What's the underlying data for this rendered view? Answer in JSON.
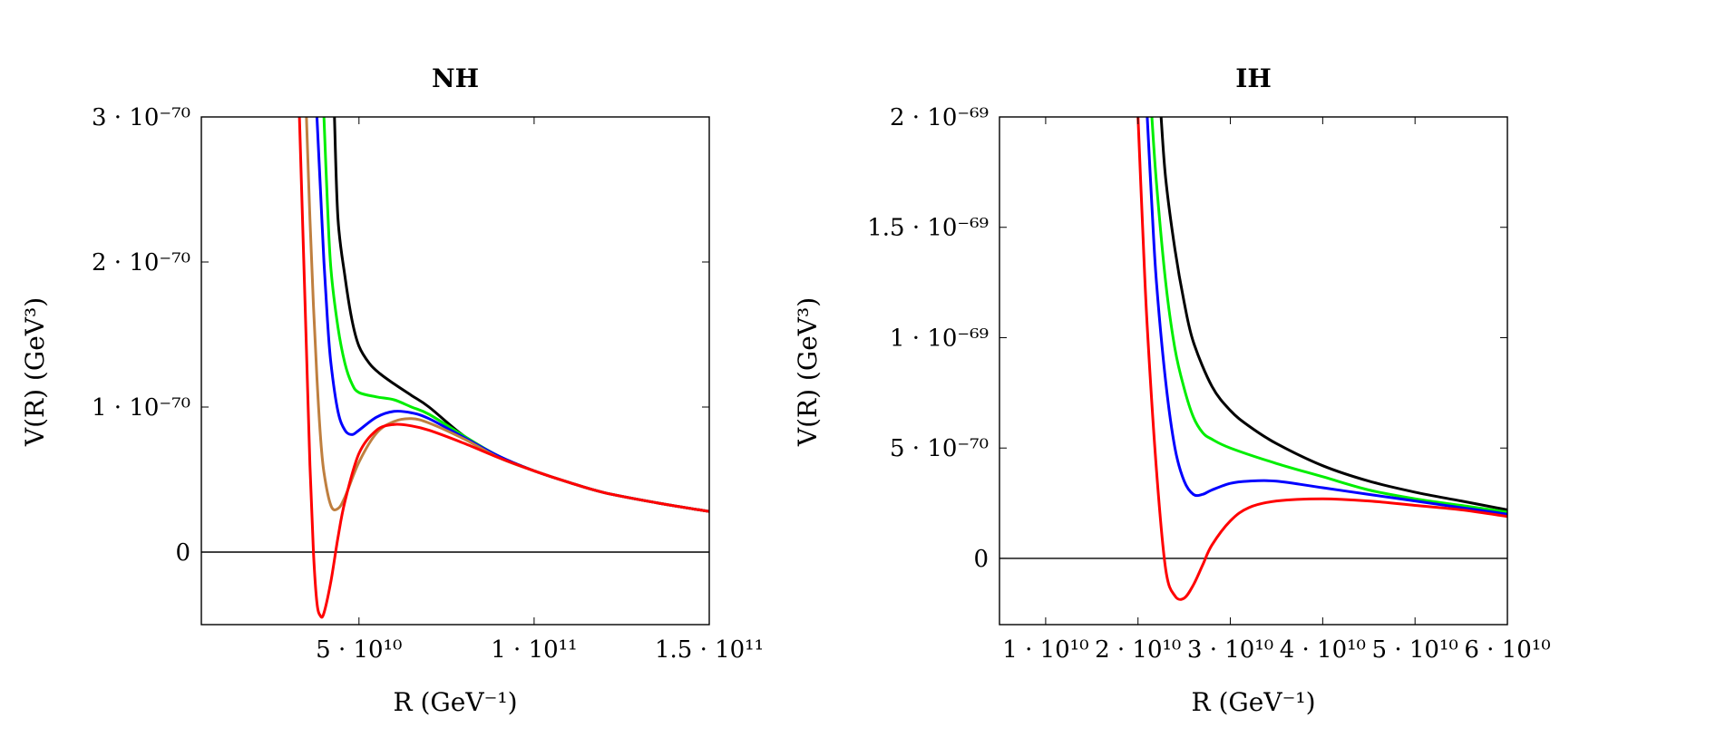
{
  "chart_data": [
    {
      "type": "line",
      "id": "nh",
      "title": "NH",
      "xlabel": "R (GeV⁻¹)",
      "ylabel": "V(R) (GeV³)",
      "xlim": [
        5000000000.0,
        150000000000.0
      ],
      "ylim": [
        -5e-71,
        3e-70
      ],
      "xticks": [
        {
          "value": 50000000000.0,
          "label": "5 · 10¹⁰"
        },
        {
          "value": 100000000000.0,
          "label": "1 · 10¹¹"
        },
        {
          "value": 150000000000.0,
          "label": "1.5 · 10¹¹"
        }
      ],
      "yticks": [
        {
          "value": 0,
          "label": "0"
        },
        {
          "value": 1e-70,
          "label": "1 · 10⁻⁷⁰"
        },
        {
          "value": 2e-70,
          "label": "2 · 10⁻⁷⁰"
        },
        {
          "value": 3e-70,
          "label": "3 · 10⁻⁷⁰"
        }
      ],
      "zero_line": true,
      "series": [
        {
          "name": "black",
          "color": "#000000",
          "x": [
            43000000000.0,
            44000000000.0,
            46000000000.0,
            48000000000.0,
            50000000000.0,
            53000000000.0,
            56000000000.0,
            60000000000.0,
            65000000000.0,
            70000000000.0,
            80000000000.0,
            90000000000.0,
            100000000000.0,
            110000000000.0,
            120000000000.0,
            135000000000.0,
            150000000000.0
          ],
          "y": [
            3e-70,
            2.3e-70,
            1.9e-70,
            1.6e-70,
            1.42e-70,
            1.3e-70,
            1.23e-70,
            1.16e-70,
            1.08e-70,
            1e-70,
            8e-71,
            6.6e-71,
            5.6e-71,
            4.8e-71,
            4.1e-71,
            3.4e-71,
            2.8e-71
          ]
        },
        {
          "name": "green",
          "color": "#00ee00",
          "x": [
            40000000000.0,
            41000000000.0,
            42000000000.0,
            44000000000.0,
            46000000000.0,
            48000000000.0,
            50000000000.0,
            55000000000.0,
            60000000000.0,
            65000000000.0,
            70000000000.0,
            80000000000.0,
            90000000000.0,
            100000000000.0,
            110000000000.0,
            120000000000.0,
            135000000000.0,
            150000000000.0
          ],
          "y": [
            3e-70,
            2.4e-70,
            1.95e-70,
            1.55e-70,
            1.3e-70,
            1.16e-70,
            1.1e-70,
            1.07e-70,
            1.05e-70,
            1e-70,
            9.5e-71,
            8e-71,
            6.6e-71,
            5.6e-71,
            4.8e-71,
            4.1e-71,
            3.4e-71,
            2.8e-71
          ]
        },
        {
          "name": "blue",
          "color": "#0000ff",
          "x": [
            38000000000.0,
            39000000000.0,
            40000000000.0,
            41000000000.0,
            42000000000.0,
            44000000000.0,
            46000000000.0,
            48000000000.0,
            50000000000.0,
            55000000000.0,
            60000000000.0,
            65000000000.0,
            70000000000.0,
            80000000000.0,
            90000000000.0,
            100000000000.0,
            110000000000.0,
            120000000000.0,
            135000000000.0,
            150000000000.0
          ],
          "y": [
            3e-70,
            2.5e-70,
            2e-70,
            1.6e-70,
            1.3e-70,
            9.7e-71,
            8.4e-71,
            8.1e-71,
            8.4e-71,
            9.3e-71,
            9.7e-71,
            9.6e-71,
            9.2e-71,
            7.9e-71,
            6.6e-71,
            5.6e-71,
            4.8e-71,
            4.1e-71,
            3.4e-71,
            2.8e-71
          ]
        },
        {
          "name": "brown",
          "color": "#bf7f3f",
          "x": [
            35000000000.0,
            36000000000.0,
            37000000000.0,
            38000000000.0,
            39000000000.0,
            40000000000.0,
            42000000000.0,
            44000000000.0,
            46000000000.0,
            50000000000.0,
            55000000000.0,
            60000000000.0,
            65000000000.0,
            70000000000.0,
            80000000000.0,
            90000000000.0,
            100000000000.0,
            110000000000.0,
            120000000000.0,
            135000000000.0,
            150000000000.0
          ],
          "y": [
            3e-70,
            2.3e-70,
            1.7e-70,
            1.2e-70,
            8e-71,
            5.5e-71,
            3.2e-71,
            3e-71,
            3.8e-71,
            6.2e-71,
            8.2e-71,
            9e-71,
            9.2e-71,
            8.9e-71,
            7.8e-71,
            6.5e-71,
            5.6e-71,
            4.8e-71,
            4.1e-71,
            3.4e-71,
            2.8e-71
          ]
        },
        {
          "name": "red",
          "color": "#ff0000",
          "x": [
            33000000000.0,
            34000000000.0,
            35000000000.0,
            36000000000.0,
            37000000000.0,
            38000000000.0,
            39000000000.0,
            40000000000.0,
            42000000000.0,
            44000000000.0,
            46000000000.0,
            50000000000.0,
            55000000000.0,
            60000000000.0,
            65000000000.0,
            70000000000.0,
            80000000000.0,
            90000000000.0,
            100000000000.0,
            110000000000.0,
            120000000000.0,
            135000000000.0,
            150000000000.0
          ],
          "y": [
            3e-70,
            2.2e-70,
            1.4e-70,
            6e-71,
            0.0,
            -3.5e-71,
            -4.4e-71,
            -4.2e-71,
            -2e-71,
            1e-71,
            3.5e-71,
            6.8e-71,
            8.4e-71,
            8.8e-71,
            8.7e-71,
            8.4e-71,
            7.5e-71,
            6.5e-71,
            5.6e-71,
            4.8e-71,
            4.1e-71,
            3.4e-71,
            2.8e-71
          ]
        }
      ]
    },
    {
      "type": "line",
      "id": "ih",
      "title": "IH",
      "xlabel": "R (GeV⁻¹)",
      "ylabel": "V(R) (GeV³)",
      "xlim": [
        5000000000.0,
        60000000000.0
      ],
      "ylim": [
        -3e-70,
        2e-69
      ],
      "xticks": [
        {
          "value": 10000000000.0,
          "label": "1 · 10¹⁰"
        },
        {
          "value": 20000000000.0,
          "label": "2 · 10¹⁰"
        },
        {
          "value": 30000000000.0,
          "label": "3 · 10¹⁰"
        },
        {
          "value": 40000000000.0,
          "label": "4 · 10¹⁰"
        },
        {
          "value": 50000000000.0,
          "label": "5 · 10¹⁰"
        },
        {
          "value": 60000000000.0,
          "label": "6 · 10¹⁰"
        }
      ],
      "yticks": [
        {
          "value": 0,
          "label": "0"
        },
        {
          "value": 5e-70,
          "label": "5 · 10⁻⁷⁰"
        },
        {
          "value": 1e-69,
          "label": "1 · 10⁻⁶⁹"
        },
        {
          "value": 1.5e-69,
          "label": "1.5 · 10⁻⁶⁹"
        },
        {
          "value": 2e-69,
          "label": "2 · 10⁻⁶⁹"
        }
      ],
      "zero_line": true,
      "series": [
        {
          "name": "black",
          "color": "#000000",
          "x": [
            22500000000.0,
            23000000000.0,
            24000000000.0,
            25000000000.0,
            26000000000.0,
            28000000000.0,
            30000000000.0,
            32000000000.0,
            35000000000.0,
            40000000000.0,
            45000000000.0,
            50000000000.0,
            55000000000.0,
            60000000000.0
          ],
          "y": [
            2e-69,
            1.72e-69,
            1.4e-69,
            1.16e-69,
            9.8e-70,
            7.8e-70,
            6.7e-70,
            6e-70,
            5.2e-70,
            4.2e-70,
            3.5e-70,
            3e-70,
            2.6e-70,
            2.2e-70
          ]
        },
        {
          "name": "green",
          "color": "#00ee00",
          "x": [
            21500000000.0,
            22000000000.0,
            23000000000.0,
            24000000000.0,
            25000000000.0,
            26000000000.0,
            27000000000.0,
            28000000000.0,
            30000000000.0,
            35000000000.0,
            40000000000.0,
            45000000000.0,
            50000000000.0,
            55000000000.0,
            60000000000.0
          ],
          "y": [
            2e-69,
            1.7e-69,
            1.25e-69,
            9.5e-70,
            7.7e-70,
            6.4e-70,
            5.7e-70,
            5.4e-70,
            5e-70,
            4.3e-70,
            3.7e-70,
            3.1e-70,
            2.7e-70,
            2.4e-70,
            2.1e-70
          ]
        },
        {
          "name": "blue",
          "color": "#0000ff",
          "x": [
            21000000000.0,
            21500000000.0,
            22000000000.0,
            23000000000.0,
            24000000000.0,
            25000000000.0,
            26000000000.0,
            27000000000.0,
            28000000000.0,
            30000000000.0,
            32000000000.0,
            35000000000.0,
            40000000000.0,
            45000000000.0,
            50000000000.0,
            55000000000.0,
            60000000000.0
          ],
          "y": [
            2e-69,
            1.6e-69,
            1.25e-69,
            8e-70,
            5e-70,
            3.5e-70,
            2.9e-70,
            2.9e-70,
            3.1e-70,
            3.4e-70,
            3.5e-70,
            3.5e-70,
            3.2e-70,
            2.9e-70,
            2.6e-70,
            2.3e-70,
            2e-70
          ]
        },
        {
          "name": "red",
          "color": "#ff0000",
          "x": [
            20000000000.0,
            20500000000.0,
            21000000000.0,
            22000000000.0,
            23000000000.0,
            24000000000.0,
            25000000000.0,
            26000000000.0,
            27000000000.0,
            28000000000.0,
            30000000000.0,
            32000000000.0,
            35000000000.0,
            40000000000.0,
            45000000000.0,
            50000000000.0,
            55000000000.0,
            60000000000.0
          ],
          "y": [
            2e-69,
            1.5e-69,
            1.05e-69,
            4e-70,
            -5e-71,
            -1.7e-70,
            -1.8e-70,
            -1.2e-70,
            -3e-71,
            6e-71,
            1.7e-70,
            2.3e-70,
            2.6e-70,
            2.7e-70,
            2.6e-70,
            2.4e-70,
            2.2e-70,
            1.9e-70
          ]
        }
      ]
    }
  ]
}
